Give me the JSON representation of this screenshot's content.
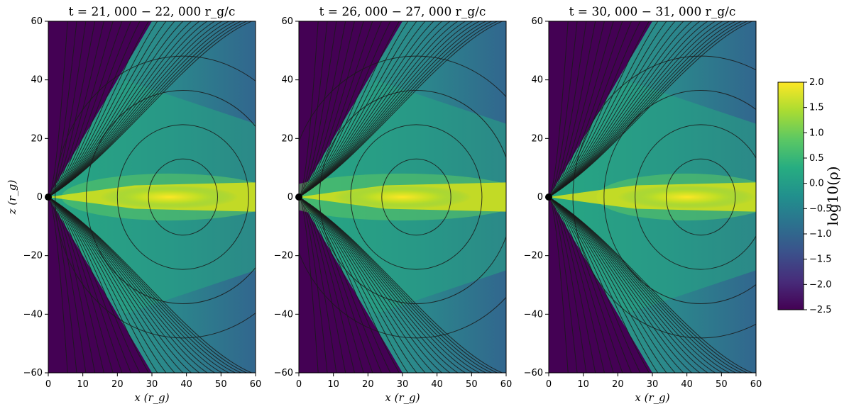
{
  "chart_data": {
    "type": "heatmap",
    "colormap": "viridis",
    "panels": [
      {
        "title": "t = 21, 000 − 22, 000 r_g/c",
        "xlabel": "x (r_g)",
        "ylabel": "z (r_g)",
        "xlim": [
          0,
          60
        ],
        "ylim": [
          -60,
          60
        ],
        "disk_peak_x": 35
      },
      {
        "title": "t = 26, 000 − 27, 000 r_g/c",
        "xlabel": "x (r_g)",
        "ylabel": "",
        "xlim": [
          0,
          60
        ],
        "ylim": [
          -60,
          60
        ],
        "disk_peak_x": 30
      },
      {
        "title": "t = 30, 000 − 31, 000 r_g/c",
        "xlabel": "x (r_g)",
        "ylabel": "",
        "xlim": [
          0,
          60
        ],
        "ylim": [
          -60,
          60
        ],
        "disk_peak_x": 40
      }
    ],
    "x_ticks": [
      0,
      10,
      20,
      30,
      40,
      50,
      60
    ],
    "y_ticks": [
      -60,
      -40,
      -20,
      0,
      20,
      40,
      60
    ],
    "colorbar": {
      "label": "log10(ρ)",
      "range": [
        -2.5,
        2.0
      ],
      "ticks": [
        2.0,
        1.5,
        1.0,
        0.5,
        0.0,
        -0.5,
        -1.0,
        -1.5,
        -2.0,
        -2.5
      ],
      "tick_labels": [
        "2.0",
        "1.5",
        "1.0",
        "0.5",
        "0.0",
        "−0.5",
        "−1.0",
        "−1.5",
        "−2.0",
        "−2.5"
      ]
    }
  }
}
